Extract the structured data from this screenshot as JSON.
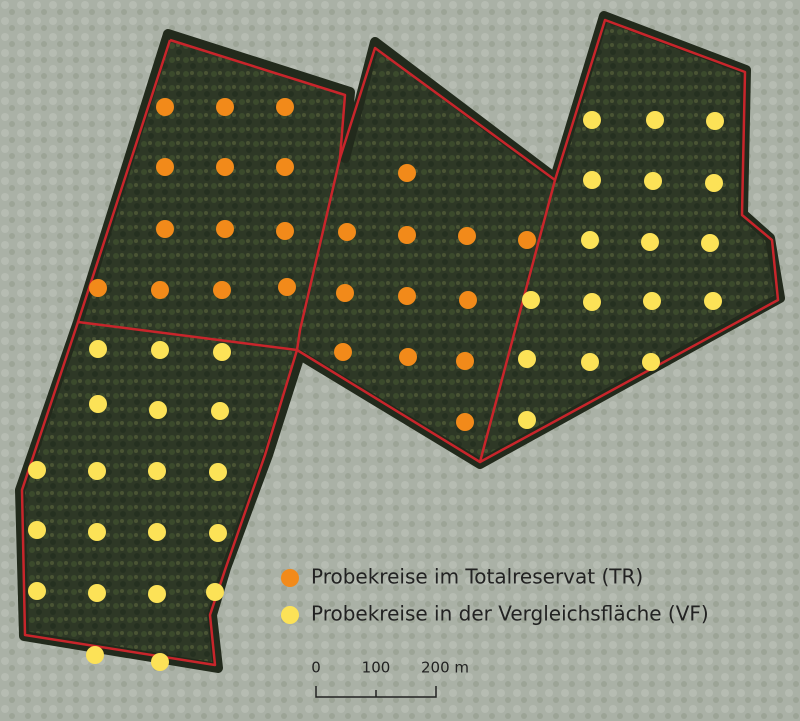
{
  "legend": {
    "items": [
      {
        "label": "Probekreise im Totalreservat (TR)",
        "color": "#f28a1a"
      },
      {
        "label": "Probekreise in der Vergleichsfläche (VF)",
        "color": "#fce257"
      }
    ]
  },
  "scale_bar": {
    "labels": [
      "0",
      "100",
      "200 m"
    ]
  }
}
